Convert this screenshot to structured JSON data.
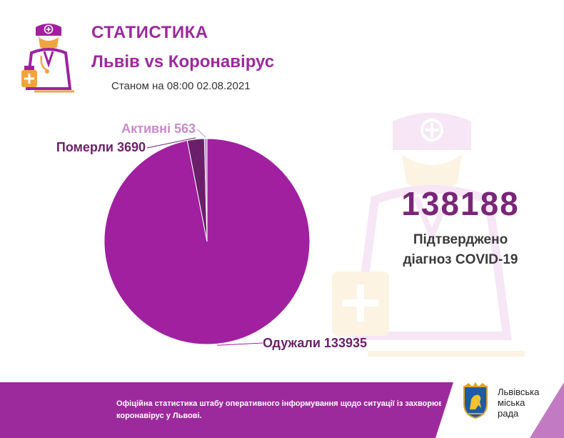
{
  "header": {
    "title": "СТАТИСТИКА",
    "subtitle": "Львів vs Коронавірус",
    "date": "Станом на 08:00 02.08.2021",
    "icon": "doctor-icon"
  },
  "summary": {
    "confirmed_total": "138188",
    "confirmed_label_line1": "Підтверджено",
    "confirmed_label_line2": "діагноз COVID-19"
  },
  "chart_data": {
    "type": "pie",
    "title": "",
    "slices": [
      {
        "name": "Одужали",
        "value": 133935,
        "label": "Одужали 133935",
        "color": "#a020a0",
        "label_color": "#6b1f6b"
      },
      {
        "name": "Померли",
        "value": 3690,
        "label": "Померли 3690",
        "color": "#6b1f6b",
        "label_color": "#6b1f6b"
      },
      {
        "name": "Активні",
        "value": 563,
        "label": "Активні 563",
        "color": "#c98ac9",
        "label_color": "#c98ac9"
      }
    ]
  },
  "footer": {
    "text_line1": "Офіційна статистика штабу оперативного інформування щодо ситуації із захворюванням на",
    "text_line2": "коронавірус у Львові.",
    "city_name_line1": "Львівська",
    "city_name_line2": "міська",
    "city_name_line3": "рада",
    "crest_icon": "lion-crest-icon"
  },
  "colors": {
    "brand_purple": "#9c2a9c",
    "dark_purple": "#7a2678",
    "light_purple": "#c27bc2",
    "icon_orange": "#f0a441"
  }
}
